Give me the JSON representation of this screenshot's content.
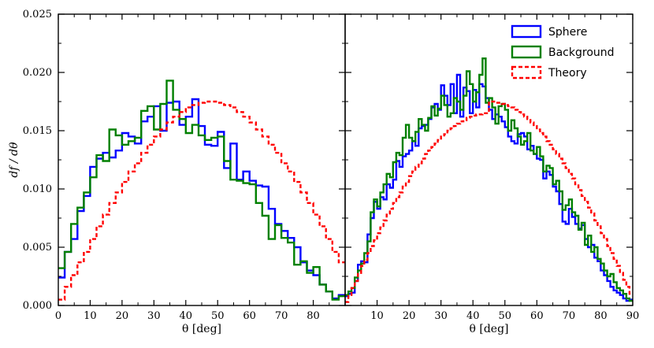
{
  "chart_data": {
    "type": "line",
    "ylabel": "df / dθ",
    "ylim": [
      0,
      0.025
    ],
    "y_ticks": [
      "0.000",
      "0.005",
      "0.010",
      "0.015",
      "0.020",
      "0.025"
    ],
    "y_tick_values": [
      0,
      0.005,
      0.01,
      0.015,
      0.02,
      0.025
    ],
    "legend": {
      "position": "top-right of right panel",
      "entries": [
        {
          "name": "Sphere",
          "color": "#0000ff",
          "style": "solid"
        },
        {
          "name": "Background",
          "color": "#008000",
          "style": "solid"
        },
        {
          "name": "Theory",
          "color": "#ff0000",
          "style": "dashed"
        }
      ]
    },
    "panels": [
      {
        "xlabel": "θ [deg]",
        "xlim": [
          0,
          90
        ],
        "x_ticks": [
          "0",
          "10",
          "20",
          "30",
          "40",
          "50",
          "60",
          "70",
          "80"
        ],
        "x_tick_values": [
          0,
          10,
          20,
          30,
          40,
          50,
          60,
          70,
          80
        ],
        "bin_width": 2,
        "series": [
          {
            "name": "Sphere",
            "color": "#0000ff",
            "dash": false,
            "values": [
              0.0024,
              0.0046,
              0.0057,
              0.0081,
              0.0094,
              0.0119,
              0.0126,
              0.0131,
              0.0127,
              0.0133,
              0.0148,
              0.0145,
              0.0139,
              0.0158,
              0.0162,
              0.0171,
              0.015,
              0.0174,
              0.0175,
              0.0155,
              0.0162,
              0.0177,
              0.0154,
              0.0138,
              0.0137,
              0.0149,
              0.0118,
              0.0139,
              0.0108,
              0.0115,
              0.0107,
              0.0103,
              0.0102,
              0.0083,
              0.007,
              0.0064,
              0.0058,
              0.005,
              0.0037,
              0.003,
              0.0026,
              0.0018,
              0.0012,
              0.0006,
              0.0009
            ]
          },
          {
            "name": "Background",
            "color": "#008000",
            "dash": false,
            "values": [
              0.0032,
              0.0046,
              0.007,
              0.0084,
              0.0097,
              0.011,
              0.0129,
              0.0124,
              0.0151,
              0.0146,
              0.0138,
              0.0141,
              0.0144,
              0.0167,
              0.0171,
              0.0151,
              0.0173,
              0.0193,
              0.0168,
              0.016,
              0.0148,
              0.0155,
              0.0146,
              0.0142,
              0.0144,
              0.0145,
              0.0124,
              0.0108,
              0.0107,
              0.0105,
              0.0104,
              0.0088,
              0.0077,
              0.0057,
              0.0069,
              0.0058,
              0.0054,
              0.0035,
              0.0038,
              0.0028,
              0.0033,
              0.0018,
              0.0012,
              0.0005,
              0.0008
            ]
          },
          {
            "name": "Theory",
            "color": "#ff0000",
            "dash": true,
            "values": [
              0.0005,
              0.0016,
              0.0026,
              0.0037,
              0.0046,
              0.0057,
              0.0068,
              0.0078,
              0.0088,
              0.0097,
              0.0106,
              0.0115,
              0.0122,
              0.0131,
              0.0138,
              0.0145,
              0.0151,
              0.0157,
              0.0162,
              0.0166,
              0.017,
              0.0172,
              0.0174,
              0.0175,
              0.0175,
              0.0174,
              0.0172,
              0.017,
              0.0166,
              0.0162,
              0.0157,
              0.0151,
              0.0145,
              0.0138,
              0.0131,
              0.0122,
              0.0115,
              0.0106,
              0.0097,
              0.0088,
              0.0078,
              0.0068,
              0.0057,
              0.0046,
              0.0037
            ]
          }
        ]
      },
      {
        "xlabel": "θ [deg]",
        "xlim": [
          0,
          90
        ],
        "x_ticks": [
          "10",
          "20",
          "30",
          "40",
          "50",
          "60",
          "70",
          "80",
          "90"
        ],
        "x_tick_values": [
          10,
          20,
          30,
          40,
          50,
          60,
          70,
          80,
          90
        ],
        "bin_width": 1,
        "series": [
          {
            "name": "Sphere",
            "color": "#0000ff",
            "dash": false,
            "values": [
              0.0008,
              0.001,
              0.0011,
              0.0021,
              0.0035,
              0.0038,
              0.0037,
              0.0061,
              0.0075,
              0.0089,
              0.0083,
              0.0093,
              0.0091,
              0.0104,
              0.0101,
              0.0108,
              0.0124,
              0.0119,
              0.0128,
              0.013,
              0.0133,
              0.0141,
              0.0137,
              0.0152,
              0.0154,
              0.0155,
              0.016,
              0.017,
              0.0173,
              0.0168,
              0.0189,
              0.018,
              0.0172,
              0.019,
              0.0165,
              0.0198,
              0.0162,
              0.0187,
              0.0184,
              0.0165,
              0.0185,
              0.017,
              0.019,
              0.0188,
              0.0178,
              0.0168,
              0.016,
              0.0164,
              0.0162,
              0.0158,
              0.0153,
              0.0145,
              0.0141,
              0.0139,
              0.0147,
              0.0148,
              0.0145,
              0.0134,
              0.0137,
              0.013,
              0.0126,
              0.0125,
              0.0109,
              0.0115,
              0.0112,
              0.0102,
              0.0098,
              0.0087,
              0.0072,
              0.007,
              0.0083,
              0.0076,
              0.007,
              0.0066,
              0.0069,
              0.0057,
              0.005,
              0.0052,
              0.0041,
              0.0038,
              0.003,
              0.0026,
              0.0021,
              0.0016,
              0.0013,
              0.0011,
              0.0009,
              0.0006,
              0.0004,
              0.0005
            ]
          },
          {
            "name": "Background",
            "color": "#008000",
            "dash": false,
            "values": [
              0.0009,
              0.0012,
              0.0015,
              0.0024,
              0.003,
              0.0036,
              0.0045,
              0.0055,
              0.008,
              0.0091,
              0.0085,
              0.0097,
              0.0104,
              0.0113,
              0.011,
              0.0123,
              0.0131,
              0.0129,
              0.0144,
              0.0155,
              0.0144,
              0.0141,
              0.0149,
              0.016,
              0.0155,
              0.015,
              0.0161,
              0.0171,
              0.0163,
              0.0169,
              0.018,
              0.0172,
              0.0162,
              0.0165,
              0.0178,
              0.0175,
              0.0168,
              0.018,
              0.0201,
              0.019,
              0.0175,
              0.0183,
              0.0198,
              0.0212,
              0.0174,
              0.0178,
              0.017,
              0.0156,
              0.0171,
              0.0173,
              0.0168,
              0.015,
              0.0159,
              0.0152,
              0.0145,
              0.0138,
              0.0141,
              0.0148,
              0.0133,
              0.013,
              0.0136,
              0.0128,
              0.0115,
              0.012,
              0.0118,
              0.0104,
              0.0107,
              0.0098,
              0.0082,
              0.0086,
              0.0091,
              0.008,
              0.0077,
              0.0065,
              0.0071,
              0.0052,
              0.006,
              0.0046,
              0.005,
              0.004,
              0.0036,
              0.003,
              0.0025,
              0.0027,
              0.002,
              0.0015,
              0.0013,
              0.001,
              0.0006,
              0.0004
            ]
          },
          {
            "name": "Theory",
            "color": "#ff0000",
            "dash": true,
            "values": [
              0.0003,
              0.0009,
              0.0015,
              0.0021,
              0.0027,
              0.0034,
              0.0039,
              0.0045,
              0.0051,
              0.0056,
              0.0062,
              0.0067,
              0.0073,
              0.0078,
              0.0083,
              0.0088,
              0.0093,
              0.0097,
              0.0102,
              0.0106,
              0.0111,
              0.0115,
              0.0119,
              0.0122,
              0.0126,
              0.013,
              0.0133,
              0.0136,
              0.0139,
              0.0142,
              0.0145,
              0.0147,
              0.015,
              0.0152,
              0.0154,
              0.0156,
              0.0158,
              0.0159,
              0.0161,
              0.0162,
              0.0163,
              0.0164,
              0.0164,
              0.0165,
              0.0165,
              0.0175,
              0.0175,
              0.0174,
              0.0174,
              0.0173,
              0.0172,
              0.0171,
              0.017,
              0.0168,
              0.0166,
              0.0164,
              0.0162,
              0.016,
              0.0157,
              0.0154,
              0.0151,
              0.0148,
              0.0145,
              0.0141,
              0.0138,
              0.0134,
              0.013,
              0.0126,
              0.0122,
              0.0118,
              0.0113,
              0.0109,
              0.0104,
              0.0099,
              0.0094,
              0.0089,
              0.0084,
              0.0079,
              0.0073,
              0.0068,
              0.0062,
              0.0057,
              0.0051,
              0.0045,
              0.004,
              0.0034,
              0.0028,
              0.0022,
              0.0016,
              0.001
            ]
          }
        ]
      }
    ]
  }
}
